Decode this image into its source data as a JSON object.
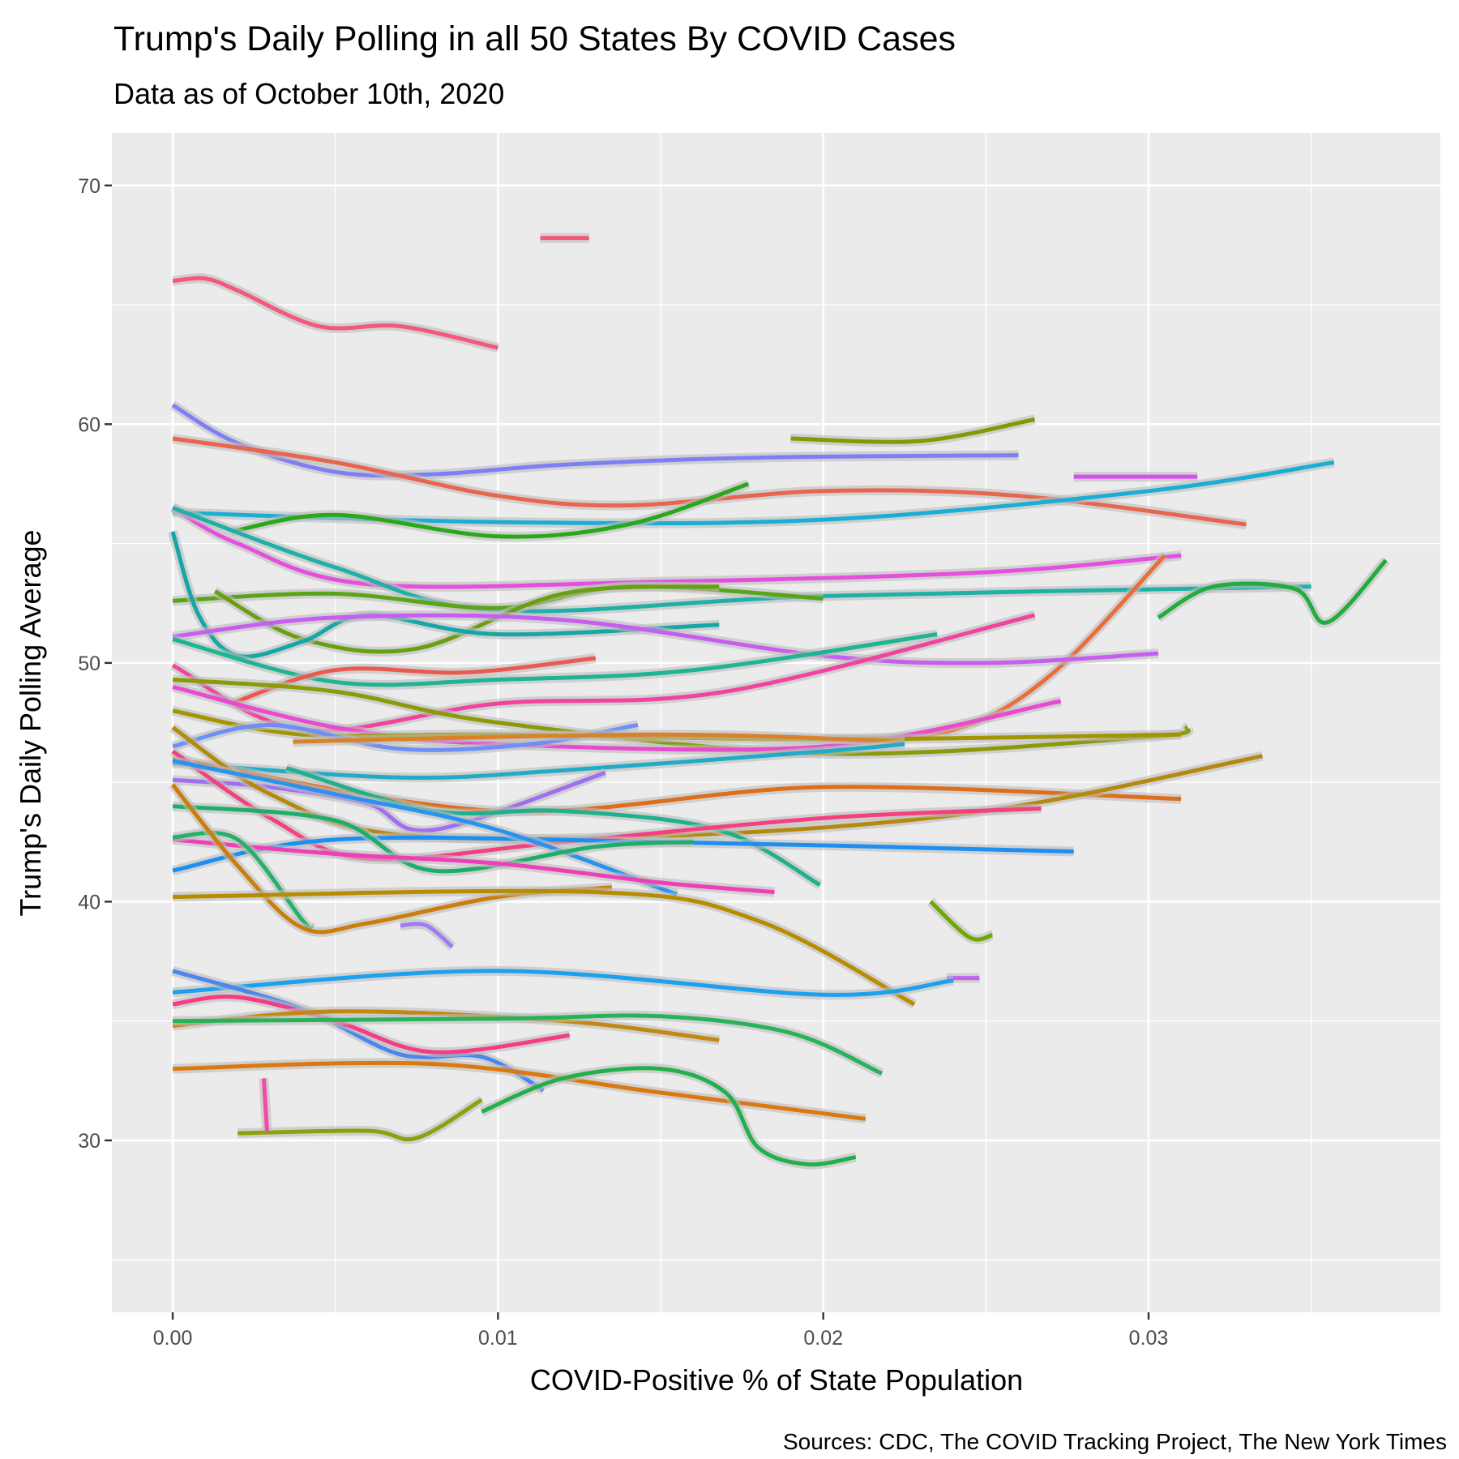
{
  "chart_data": {
    "type": "line",
    "title": "Trump's Daily Polling in all 50 States By COVID Cases",
    "subtitle": "Data as of October 10th, 2020",
    "x_label": "COVID-Positive % of State Population",
    "y_label": "Trump's Daily Polling Average",
    "caption": "Sources: CDC, The COVID Tracking Project, The New York Times",
    "xlim": [
      -0.00187,
      0.03897
    ],
    "ylim": [
      22.8,
      72.2
    ],
    "xticks": [
      {
        "value": 0,
        "label": "0.00"
      },
      0.01,
      0.02,
      0.03
    ],
    "yticks": [
      30,
      40,
      50,
      60,
      70
    ],
    "grid": true,
    "series": [
      {
        "color": "#f4587c",
        "x": [
          0,
          0.001,
          0.002,
          0.0045,
          0.007,
          0.01
        ],
        "values": [
          66,
          66.1,
          65.6,
          64.1,
          64.1,
          63.2
        ]
      },
      {
        "color": "#f4587c",
        "x": [
          0.0113,
          0.0128
        ],
        "values": [
          67.8,
          67.8
        ]
      },
      {
        "color": "#7f7ff5",
        "x": [
          0,
          0.002,
          0.005,
          0.008,
          0.012,
          0.018,
          0.026
        ],
        "values": [
          60.8,
          59.2,
          58,
          57.9,
          58.3,
          58.6,
          58.7
        ]
      },
      {
        "color": "#e8654f",
        "x": [
          0,
          0.005,
          0.01,
          0.014,
          0.02,
          0.026,
          0.033
        ],
        "values": [
          59.4,
          58.4,
          57,
          56.6,
          57.2,
          57,
          55.8
        ]
      },
      {
        "color": "#7f9d00",
        "x": [
          0.019,
          0.023,
          0.0265
        ],
        "values": [
          59.4,
          59.3,
          60.2
        ]
      },
      {
        "color": "#d44ff0",
        "x": [
          0.0277,
          0.0315
        ],
        "values": [
          57.8,
          57.8
        ]
      },
      {
        "color": "#1aaed4",
        "x": [
          0,
          0.01,
          0.02,
          0.03,
          0.0357
        ],
        "values": [
          56.3,
          55.9,
          56,
          57.2,
          58.4
        ]
      },
      {
        "color": "#29a81a",
        "x": [
          0.0018,
          0.005,
          0.01,
          0.014,
          0.0177
        ],
        "values": [
          55.5,
          56.2,
          55.3,
          55.8,
          57.5
        ]
      },
      {
        "color": "#e64ee0",
        "x": [
          0,
          0.002,
          0.006,
          0.015,
          0.025,
          0.031
        ],
        "values": [
          56.5,
          55,
          53.3,
          53.4,
          53.8,
          54.5
        ]
      },
      {
        "color": "#1fb0a8",
        "x": [
          0,
          0.005,
          0.01,
          0.02,
          0.035
        ],
        "values": [
          56.5,
          54,
          52.2,
          52.8,
          53.2
        ]
      },
      {
        "color": "#ea6e3a",
        "x": [
          0.02,
          0.024,
          0.027,
          0.0305
        ],
        "values": [
          46.8,
          47.2,
          49.5,
          54.5
        ]
      },
      {
        "color": "#21ad3e",
        "x": [
          0.0303,
          0.032,
          0.0345,
          0.0355,
          0.0373
        ],
        "values": [
          51.9,
          53.2,
          53.1,
          51.7,
          54.3
        ]
      },
      {
        "color": "#59a417",
        "x": [
          0,
          0.005,
          0.01,
          0.014,
          0.02
        ],
        "values": [
          52.6,
          52.9,
          52.3,
          53.2,
          52.7
        ]
      },
      {
        "color": "#6aa00f",
        "x": [
          0.0013,
          0.004,
          0.0075,
          0.012,
          0.0168
        ],
        "values": [
          53,
          51,
          50.6,
          52.9,
          53.2
        ]
      },
      {
        "color": "#16a6a6",
        "x": [
          0,
          0.0008,
          0.002,
          0.004,
          0.006,
          0.01,
          0.0168
        ],
        "values": [
          55.5,
          52,
          50.3,
          50.9,
          52,
          51.2,
          51.6
        ]
      },
      {
        "color": "#c65ef1",
        "x": [
          0,
          0.005,
          0.012,
          0.02,
          0.025,
          0.0303
        ],
        "values": [
          51.1,
          51.9,
          51.8,
          50.3,
          50,
          50.4
        ]
      },
      {
        "color": "#1db592",
        "x": [
          0,
          0.005,
          0.01,
          0.016,
          0.0235
        ],
        "values": [
          51,
          49.2,
          49.3,
          49.7,
          51.2
        ]
      },
      {
        "color": "#f0449e",
        "x": [
          0,
          0.004,
          0.01,
          0.017,
          0.0265
        ],
        "values": [
          49.9,
          47.2,
          48.3,
          48.8,
          52
        ]
      },
      {
        "color": "#ec5a4f",
        "x": [
          0.0018,
          0.005,
          0.009,
          0.013
        ],
        "values": [
          48.3,
          49.7,
          49.6,
          50.2
        ]
      },
      {
        "color": "#8b9a08",
        "x": [
          0,
          0.005,
          0.01,
          0.02,
          0.03,
          0.0312
        ],
        "values": [
          49.3,
          48.8,
          47.5,
          46.2,
          46.9,
          47.3
        ]
      },
      {
        "color": "#e84bd0",
        "x": [
          0,
          0.005,
          0.01,
          0.02,
          0.0273
        ],
        "values": [
          49,
          47.3,
          46.6,
          46.5,
          48.4
        ]
      },
      {
        "color": "#a39500",
        "x": [
          0,
          0.004,
          0.01,
          0.02,
          0.031
        ],
        "values": [
          48,
          47,
          47,
          46.8,
          47
        ]
      },
      {
        "color": "#6d8ff7",
        "x": [
          0,
          0.003,
          0.007,
          0.011,
          0.0143
        ],
        "values": [
          46.5,
          47.4,
          46.4,
          46.6,
          47.4
        ]
      },
      {
        "color": "#d9822b",
        "x": [
          0.0037,
          0.015,
          0.0225
        ],
        "values": [
          46.7,
          47,
          46.7
        ]
      },
      {
        "color": "#22abc7",
        "x": [
          0,
          0.007,
          0.012,
          0.02,
          0.0225
        ],
        "values": [
          45.8,
          45.2,
          45.5,
          46.3,
          46.6
        ]
      },
      {
        "color": "#de6d1c",
        "x": [
          0,
          0.01,
          0.02,
          0.031
        ],
        "values": [
          46,
          43.8,
          44.8,
          44.3
        ]
      },
      {
        "color": "#a06ef2",
        "x": [
          0,
          0.003,
          0.006,
          0.008,
          0.0133
        ],
        "values": [
          45.1,
          44.8,
          44.1,
          43,
          45.4
        ]
      },
      {
        "color": "#b4890f",
        "x": [
          0,
          0.003,
          0.007,
          0.016,
          0.025,
          0.0335
        ],
        "values": [
          47.3,
          44.5,
          42.8,
          42.8,
          43.8,
          46.1
        ]
      },
      {
        "color": "#1fb08c",
        "x": [
          0.0035,
          0.008,
          0.012,
          0.0168,
          0.0199
        ],
        "values": [
          45.6,
          43.8,
          43.8,
          43,
          40.7
        ]
      },
      {
        "color": "#f5407f",
        "x": [
          0,
          0.003,
          0.006,
          0.012,
          0.02,
          0.0267
        ],
        "values": [
          46.3,
          43.5,
          41.8,
          42.5,
          43.5,
          43.9
        ]
      },
      {
        "color": "#1c8ff0",
        "x": [
          0,
          0.005,
          0.015,
          0.0277
        ],
        "values": [
          41.3,
          42.6,
          42.5,
          42.1
        ]
      },
      {
        "color": "#2894f0",
        "x": [
          0,
          0.005,
          0.01,
          0.0155
        ],
        "values": [
          45.9,
          44.5,
          43,
          40.3
        ]
      },
      {
        "color": "#1fae6a",
        "x": [
          0,
          0.005,
          0.008,
          0.013,
          0.016
        ],
        "values": [
          44,
          43.4,
          41.3,
          42.3,
          42.5
        ]
      },
      {
        "color": "#ef3fb8",
        "x": [
          0,
          0.005,
          0.01,
          0.015,
          0.0185
        ],
        "values": [
          42.6,
          42,
          41.6,
          40.8,
          40.4
        ]
      },
      {
        "color": "#26b266",
        "x": [
          0,
          0.002,
          0.004,
          0.0043
        ],
        "values": [
          42.7,
          42.6,
          39.2,
          38.9
        ]
      },
      {
        "color": "#cc7e0b",
        "x": [
          0,
          0.002,
          0.004,
          0.006,
          0.01,
          0.0135
        ],
        "values": [
          44.9,
          41.5,
          38.9,
          39.1,
          40.2,
          40.6
        ]
      },
      {
        "color": "#b88c00",
        "x": [
          0,
          0.013,
          0.018,
          0.0228
        ],
        "values": [
          40.2,
          40.4,
          39.2,
          35.7
        ]
      },
      {
        "color": "#9f7cf2",
        "x": [
          0.007,
          0.0078,
          0.0086
        ],
        "values": [
          39,
          39,
          38.1
        ]
      },
      {
        "color": "#6ea800",
        "x": [
          0.0233,
          0.0245,
          0.0252
        ],
        "values": [
          40,
          38.5,
          38.6
        ]
      },
      {
        "color": "#c062f2",
        "x": [
          0.0238,
          0.0248
        ],
        "values": [
          36.8,
          36.8
        ]
      },
      {
        "color": "#1ba1f0",
        "x": [
          0,
          0.01,
          0.02,
          0.024
        ],
        "values": [
          36.2,
          37.1,
          36.1,
          36.7
        ]
      },
      {
        "color": "#4a86ef",
        "x": [
          0,
          0.004,
          0.007,
          0.0095,
          0.0114
        ],
        "values": [
          37.1,
          35.5,
          33.6,
          33.5,
          32.1
        ]
      },
      {
        "color": "#f53d85",
        "x": [
          0,
          0.002,
          0.005,
          0.008,
          0.0122
        ],
        "values": [
          35.7,
          36,
          35,
          33.7,
          34.4
        ]
      },
      {
        "color": "#c38713",
        "x": [
          0,
          0.005,
          0.012,
          0.0168
        ],
        "values": [
          34.8,
          35.4,
          35,
          34.2
        ]
      },
      {
        "color": "#28b359",
        "x": [
          0,
          0.01,
          0.015,
          0.019,
          0.0218
        ],
        "values": [
          35,
          35.1,
          35.2,
          34.5,
          32.8
        ]
      },
      {
        "color": "#db7810",
        "x": [
          0,
          0.008,
          0.015,
          0.0213
        ],
        "values": [
          33,
          33.2,
          32,
          30.9
        ]
      },
      {
        "color": "#21b14a",
        "x": [
          0.0095,
          0.012,
          0.015,
          0.017,
          0.018,
          0.0195,
          0.021
        ],
        "values": [
          31.2,
          32.6,
          33,
          32,
          29.7,
          29,
          29.3
        ]
      },
      {
        "color": "#8ea00b",
        "x": [
          0.002,
          0.006,
          0.0075,
          0.0095
        ],
        "values": [
          30.3,
          30.4,
          30.1,
          31.7
        ]
      },
      {
        "color": "#f24aa6",
        "x": [
          0.0028,
          0.0029
        ],
        "values": [
          32.6,
          30.4
        ]
      }
    ]
  }
}
